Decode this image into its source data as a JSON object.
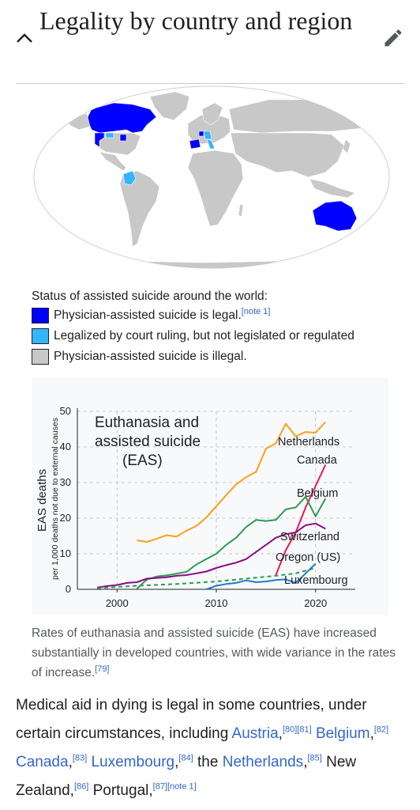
{
  "section": {
    "title": "Legality by country and region"
  },
  "map_caption": {
    "title": "Status of assisted suicide around the world:",
    "legend": [
      {
        "label": "Physician-assisted suicide is legal.",
        "ref": "[note 1]",
        "color": "#0000ff"
      },
      {
        "label": "Legalized by court ruling, but not legislated or regulated",
        "ref": "",
        "color": "#33b5ff"
      },
      {
        "label": "Physician-assisted suicide is illegal.",
        "ref": "",
        "color": "#c8c8c8"
      }
    ]
  },
  "chart_data": {
    "type": "line",
    "title": "Euthanasia and assisted suicide (EAS)",
    "title_lines": [
      "Euthanasia and",
      "assisted suicide",
      "(EAS)"
    ],
    "ylabel": "EAS deaths",
    "ylabel_sub": "per 1,000 deaths not due to external causes",
    "xlabel": "",
    "xlim": [
      1996,
      2024
    ],
    "ylim": [
      0,
      50
    ],
    "xticks": [
      "2000",
      "2010",
      "2020"
    ],
    "yticks": [
      "0",
      "10",
      "20",
      "30",
      "40",
      "50"
    ],
    "grid": true,
    "series": [
      {
        "name": "Netherlands",
        "color": "#ff9e1b",
        "dashed": false,
        "x": [
          2002,
          2003,
          2004,
          2005,
          2006,
          2007,
          2008,
          2009,
          2010,
          2011,
          2012,
          2013,
          2014,
          2015,
          2016,
          2017,
          2018,
          2019,
          2020,
          2021
        ],
        "y": [
          13.8,
          13.3,
          14.2,
          15.2,
          14.8,
          16.5,
          17.8,
          20.2,
          23.3,
          26.5,
          29.5,
          31.5,
          33.0,
          39.5,
          41.0,
          46.5,
          43.0,
          44.2,
          44.0,
          47.0
        ]
      },
      {
        "name": "Canada",
        "color": "#e8175d",
        "dashed": false,
        "x": [
          2016,
          2017,
          2018,
          2019,
          2020,
          2021
        ],
        "y": [
          4,
          11,
          16,
          23,
          29,
          35
        ]
      },
      {
        "name": "Belgium",
        "color": "#2a9d51",
        "dashed": false,
        "x": [
          2002,
          2003,
          2004,
          2005,
          2006,
          2007,
          2008,
          2009,
          2010,
          2011,
          2012,
          2013,
          2014,
          2015,
          2016,
          2017,
          2018,
          2019,
          2020,
          2021
        ],
        "y": [
          0.2,
          2.7,
          3.6,
          3.9,
          4.4,
          4.9,
          7.0,
          8.5,
          10.0,
          12.5,
          14.5,
          17.5,
          19.5,
          19.2,
          19.5,
          22.5,
          23.0,
          26.0,
          20.5,
          25.5
        ]
      },
      {
        "name": "Switzerland",
        "color": "#8b0a85",
        "dashed": false,
        "x": [
          1998,
          1999,
          2000,
          2001,
          2002,
          2003,
          2004,
          2005,
          2006,
          2007,
          2008,
          2009,
          2010,
          2011,
          2012,
          2013,
          2014,
          2015,
          2016,
          2017,
          2018,
          2019,
          2020,
          2021
        ],
        "y": [
          0.5,
          0.9,
          1.2,
          1.8,
          2.0,
          3.0,
          3.2,
          3.4,
          3.8,
          4.0,
          4.5,
          5.0,
          6.0,
          6.8,
          7.5,
          8.5,
          10.5,
          12.5,
          14.5,
          15.5,
          16.0,
          18.0,
          18.5,
          17.0
        ]
      },
      {
        "name": "Oregon (US)",
        "color": "#2a9d51",
        "dashed": true,
        "x": [
          1998,
          2002,
          2006,
          2010,
          2013,
          2016,
          2018,
          2020
        ],
        "y": [
          0.3,
          1.0,
          1.5,
          2.2,
          3.0,
          3.8,
          4.5,
          6.0
        ]
      },
      {
        "name": "Luxembourg",
        "color": "#1f7ccc",
        "dashed": false,
        "x": [
          2009,
          2010,
          2011,
          2012,
          2013,
          2014,
          2015,
          2016,
          2017,
          2018,
          2019,
          2020
        ],
        "y": [
          0.0,
          1.0,
          1.5,
          1.8,
          2.5,
          2.0,
          2.2,
          2.6,
          2.8,
          1.8,
          4.5,
          7.2
        ]
      }
    ]
  },
  "chart_caption": {
    "text": "Rates of euthanasia and assisted suicide (EAS) have increased substantially in developed countries, with wide variance in the rates of increase.",
    "ref": "[79]"
  },
  "paragraph": {
    "t1": "Medical aid in dying is legal in some countries, under certain circumstances, including ",
    "l_austria": "Austria",
    "r80": "[80]",
    "r81": "[81]",
    "l_belgium": "Belgium",
    "r82": "[82]",
    "l_canada": "Canada",
    "r83": "[83]",
    "l_luxembourg": "Luxembourg",
    "r84": "[84]",
    "t_the": " the ",
    "l_netherlands": "Netherlands",
    "r85": "[85]",
    "t_nz": " New Zealand,",
    "r86": "[86]",
    "t_portugal": " Portugal,",
    "r87": "[87]",
    "r_note1": "[note 1]",
    "comma": ","
  }
}
